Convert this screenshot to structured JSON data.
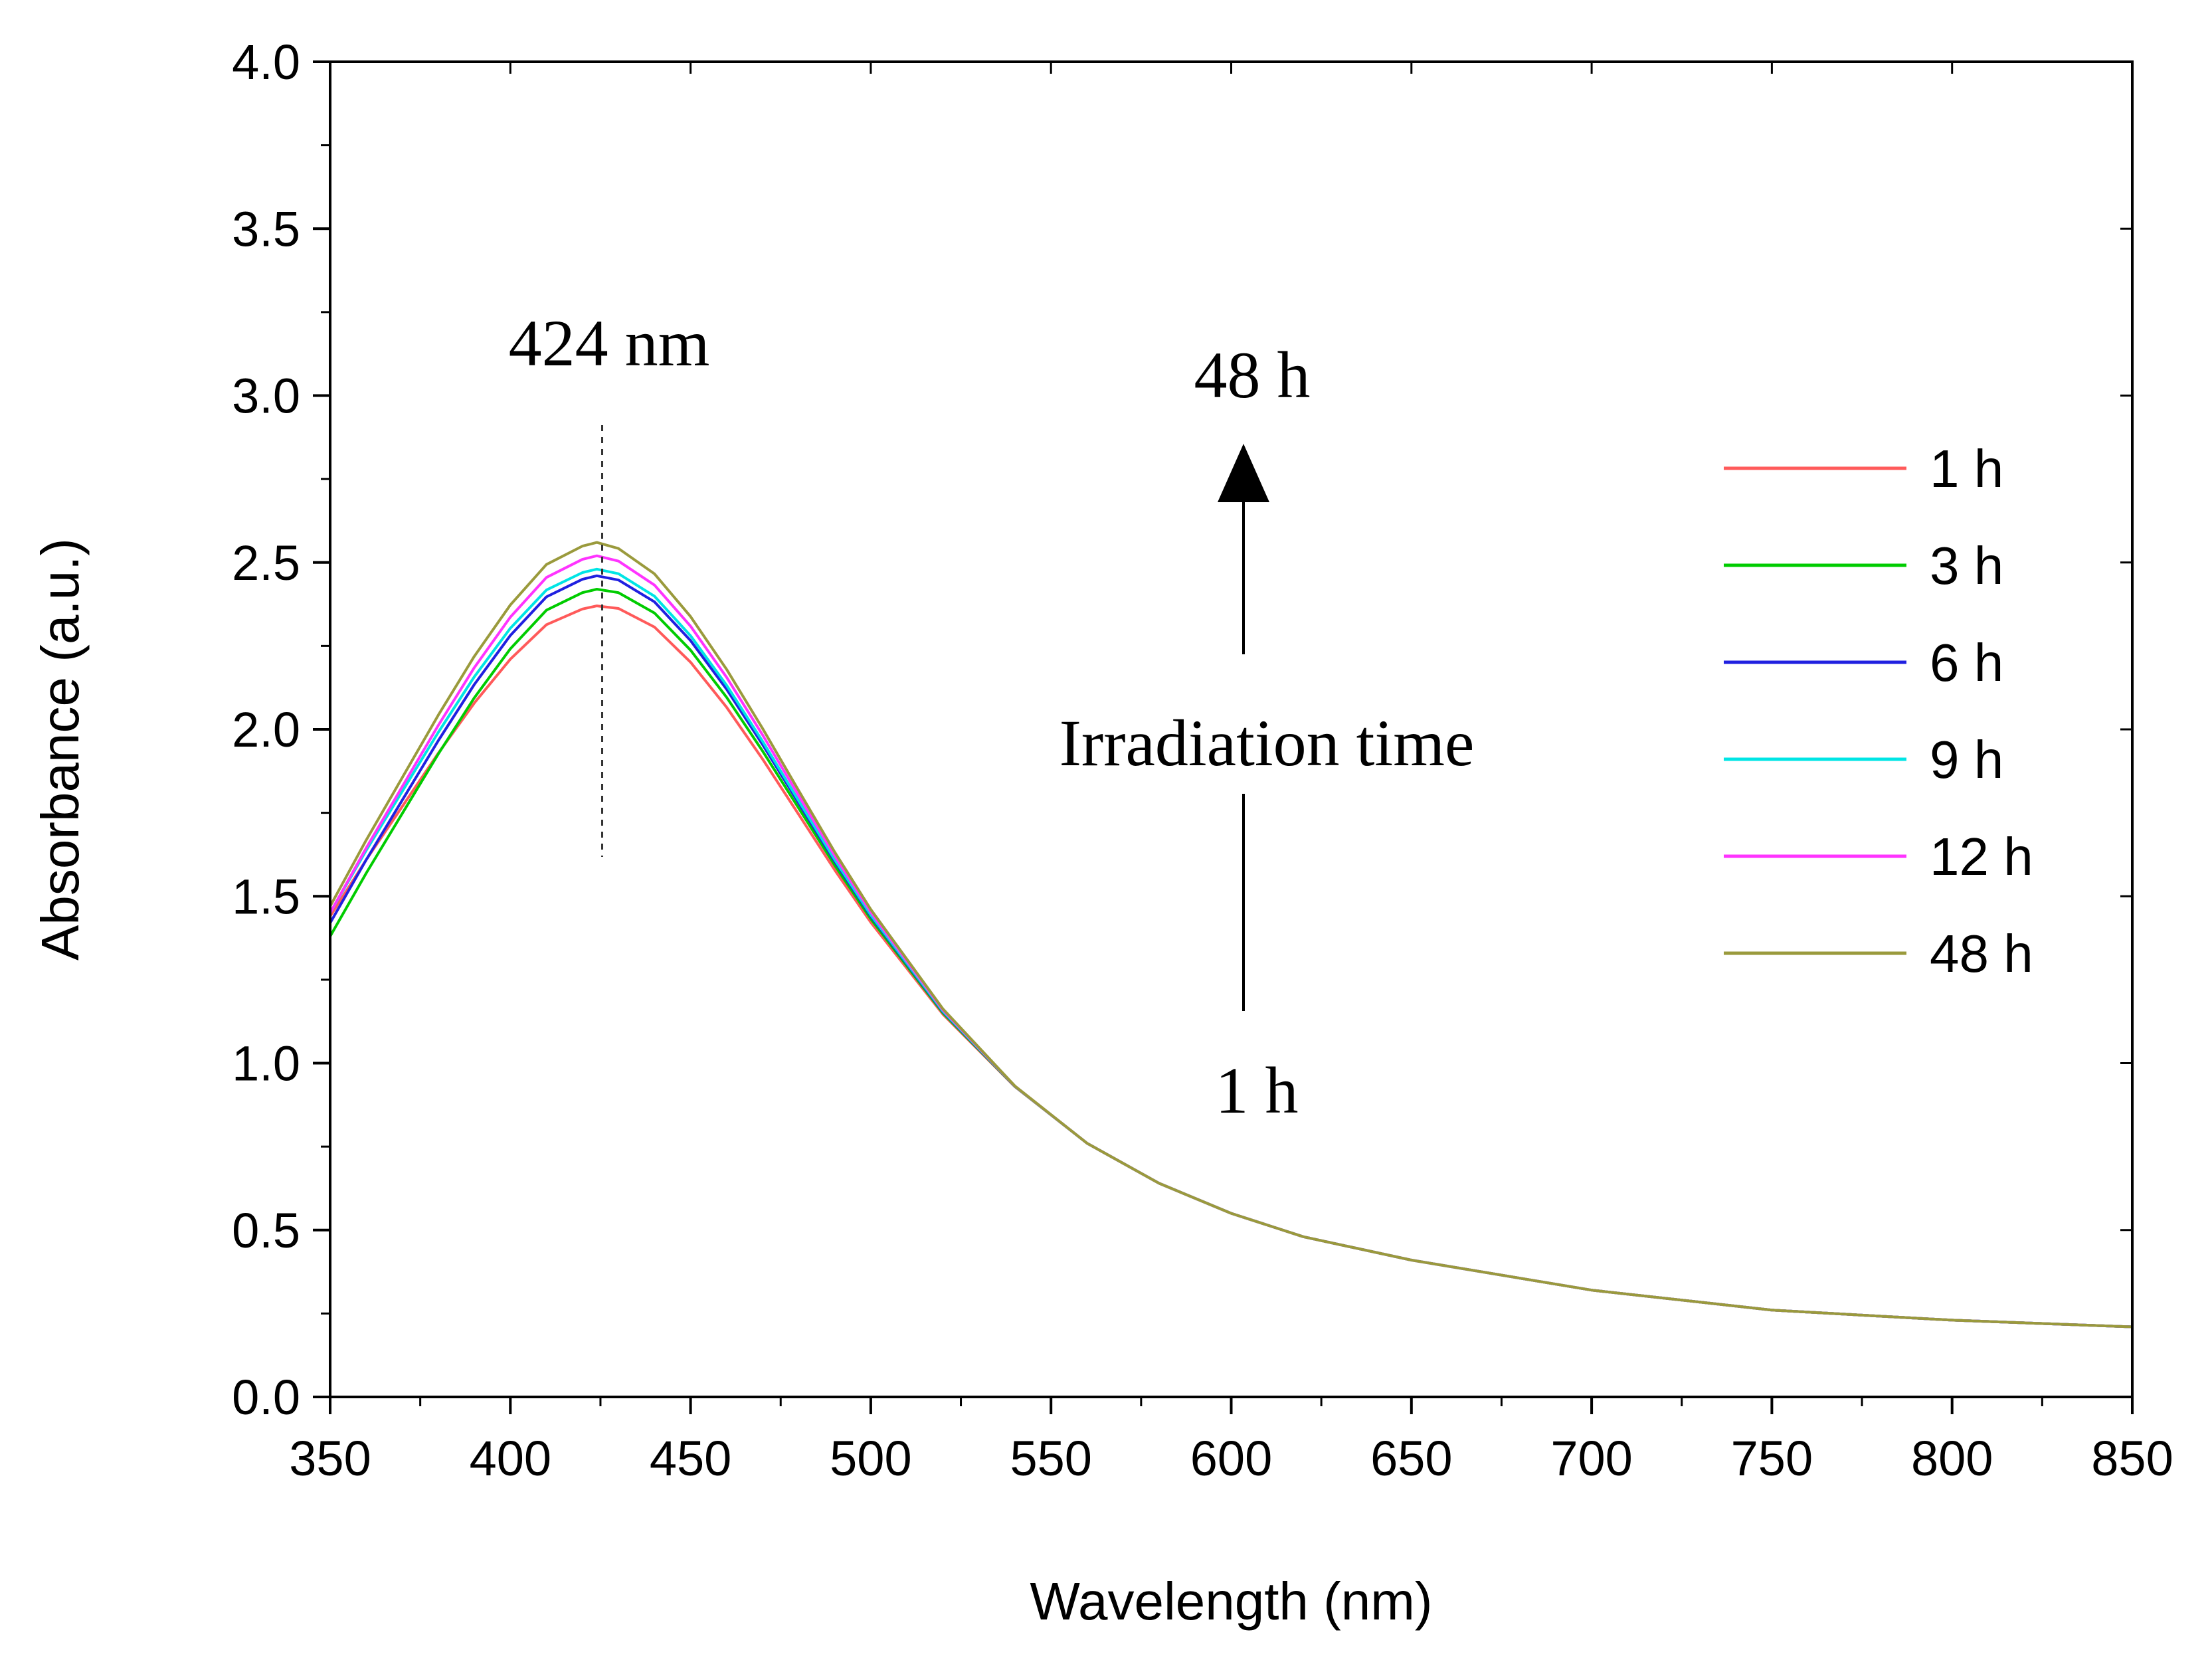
{
  "chart_data": {
    "type": "line",
    "title": "",
    "xlabel": "Wavelength (nm)",
    "ylabel": "Absorbance (a.u.)",
    "xlim": [
      350,
      850
    ],
    "ylim": [
      0.0,
      4.0
    ],
    "xticks": [
      "350",
      "400",
      "450",
      "500",
      "550",
      "600",
      "650",
      "700",
      "750",
      "800",
      "850"
    ],
    "yticks": [
      "0.0",
      "0.5",
      "1.0",
      "1.5",
      "2.0",
      "2.5",
      "3.0",
      "3.5",
      "4.0"
    ],
    "grid": false,
    "legend_position": "right",
    "x": [
      350,
      360,
      370,
      380,
      390,
      400,
      410,
      420,
      424,
      430,
      440,
      450,
      460,
      470,
      480,
      490,
      500,
      520,
      540,
      560,
      580,
      600,
      620,
      650,
      700,
      750,
      800,
      850
    ],
    "shape": [
      1.42,
      1.6,
      1.77,
      1.94,
      2.1,
      2.24,
      2.35,
      2.4,
      2.41,
      2.4,
      2.34,
      2.23,
      2.09,
      1.93,
      1.76,
      1.59,
      1.43,
      1.15,
      0.93,
      0.76,
      0.64,
      0.55,
      0.48,
      0.41,
      0.32,
      0.26,
      0.23,
      0.21
    ],
    "series": [
      {
        "name": "1 h",
        "color": "#ff5a5a",
        "peak": 2.37,
        "start": 1.44
      },
      {
        "name": "3 h",
        "color": "#00cc00",
        "peak": 2.42,
        "start": 1.38
      },
      {
        "name": "6 h",
        "color": "#2020e0",
        "peak": 2.46,
        "start": 1.42
      },
      {
        "name": "9 h",
        "color": "#00e5e5",
        "peak": 2.48,
        "start": 1.45
      },
      {
        "name": "12 h",
        "color": "#ff33ff",
        "peak": 2.52,
        "start": 1.45
      },
      {
        "name": "48 h",
        "color": "#9a9a3c",
        "peak": 2.56,
        "start": 1.47
      }
    ],
    "annotations": {
      "peak_label": "424 nm",
      "peak_x": 424,
      "arrow_top_label": "48 h",
      "arrow_middle_label": "Irradiation time",
      "arrow_bottom_label": "1 h"
    }
  }
}
